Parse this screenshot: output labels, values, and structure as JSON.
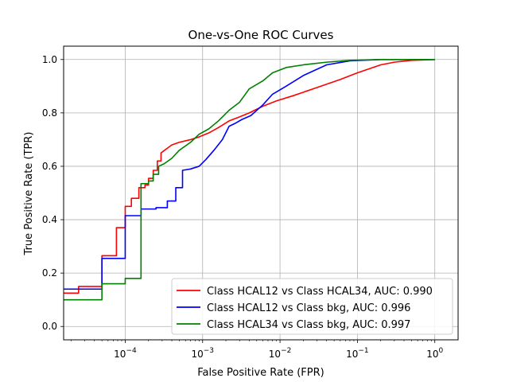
{
  "chart_data": {
    "type": "line",
    "title": "One-vs-One ROC Curves",
    "xlabel": "False Positive Rate (FPR)",
    "ylabel": "True Positive Rate (TPR)",
    "xscale": "log",
    "xlim": [
      1.6e-05,
      2
    ],
    "ylim": [
      -0.05,
      1.05
    ],
    "x_ticks": [
      {
        "value": 0.0001,
        "base": "10",
        "exp": "−4"
      },
      {
        "value": 0.001,
        "base": "10",
        "exp": "−3"
      },
      {
        "value": 0.01,
        "base": "10",
        "exp": "−2"
      },
      {
        "value": 0.1,
        "base": "10",
        "exp": "−1"
      },
      {
        "value": 1,
        "base": "10",
        "exp": "0"
      }
    ],
    "y_ticks": [
      {
        "value": 0.0,
        "label": "0.0"
      },
      {
        "value": 0.2,
        "label": "0.2"
      },
      {
        "value": 0.4,
        "label": "0.4"
      },
      {
        "value": 0.6,
        "label": "0.6"
      },
      {
        "value": 0.8,
        "label": "0.8"
      },
      {
        "value": 1.0,
        "label": "1.0"
      }
    ],
    "grid": true,
    "legend_position": "lower-right",
    "series": [
      {
        "name": "Class HCAL12 vs Class HCAL34, AUC: 0.990",
        "color": "#ff0000",
        "points": [
          [
            1.6e-05,
            0.125
          ],
          [
            2.5e-05,
            0.125
          ],
          [
            2.5e-05,
            0.15
          ],
          [
            5e-05,
            0.15
          ],
          [
            5e-05,
            0.265
          ],
          [
            7.7e-05,
            0.265
          ],
          [
            7.7e-05,
            0.37
          ],
          [
            0.0001,
            0.37
          ],
          [
            0.0001,
            0.45
          ],
          [
            0.00012,
            0.45
          ],
          [
            0.00012,
            0.48
          ],
          [
            0.00015,
            0.48
          ],
          [
            0.00015,
            0.52
          ],
          [
            0.00018,
            0.52
          ],
          [
            0.00018,
            0.53
          ],
          [
            0.0002,
            0.53
          ],
          [
            0.0002,
            0.555
          ],
          [
            0.00023,
            0.555
          ],
          [
            0.00023,
            0.585
          ],
          [
            0.00026,
            0.585
          ],
          [
            0.00026,
            0.62
          ],
          [
            0.00029,
            0.62
          ],
          [
            0.00029,
            0.65
          ],
          [
            0.00034,
            0.665
          ],
          [
            0.0004,
            0.68
          ],
          [
            0.0005,
            0.69
          ],
          [
            0.0007,
            0.7
          ],
          [
            0.0009,
            0.71
          ],
          [
            0.0012,
            0.725
          ],
          [
            0.0016,
            0.745
          ],
          [
            0.0022,
            0.77
          ],
          [
            0.003,
            0.785
          ],
          [
            0.004,
            0.8
          ],
          [
            0.006,
            0.825
          ],
          [
            0.009,
            0.845
          ],
          [
            0.015,
            0.865
          ],
          [
            0.03,
            0.895
          ],
          [
            0.06,
            0.925
          ],
          [
            0.1,
            0.95
          ],
          [
            0.2,
            0.98
          ],
          [
            0.3,
            0.99
          ],
          [
            0.5,
            0.997
          ],
          [
            1,
            1.0
          ]
        ]
      },
      {
        "name": "Class HCAL12 vs Class bkg, AUC: 0.996",
        "color": "#0000ff",
        "points": [
          [
            1.6e-05,
            0.14
          ],
          [
            5e-05,
            0.14
          ],
          [
            5e-05,
            0.255
          ],
          [
            0.0001,
            0.255
          ],
          [
            0.0001,
            0.415
          ],
          [
            0.00016,
            0.415
          ],
          [
            0.00016,
            0.44
          ],
          [
            0.00025,
            0.44
          ],
          [
            0.00025,
            0.445
          ],
          [
            0.00035,
            0.445
          ],
          [
            0.00035,
            0.47
          ],
          [
            0.00045,
            0.47
          ],
          [
            0.00045,
            0.52
          ],
          [
            0.00055,
            0.52
          ],
          [
            0.00055,
            0.585
          ],
          [
            0.0007,
            0.59
          ],
          [
            0.0009,
            0.6
          ],
          [
            0.0011,
            0.625
          ],
          [
            0.0014,
            0.66
          ],
          [
            0.0018,
            0.7
          ],
          [
            0.0022,
            0.75
          ],
          [
            0.0026,
            0.76
          ],
          [
            0.0032,
            0.775
          ],
          [
            0.0042,
            0.79
          ],
          [
            0.006,
            0.83
          ],
          [
            0.008,
            0.87
          ],
          [
            0.012,
            0.9
          ],
          [
            0.02,
            0.94
          ],
          [
            0.04,
            0.98
          ],
          [
            0.08,
            0.995
          ],
          [
            0.2,
            1.0
          ],
          [
            1,
            1.0
          ]
        ]
      },
      {
        "name": "Class HCAL34 vs Class bkg, AUC: 0.997",
        "color": "#008000",
        "points": [
          [
            1.6e-05,
            0.1
          ],
          [
            5e-05,
            0.1
          ],
          [
            5e-05,
            0.16
          ],
          [
            0.0001,
            0.16
          ],
          [
            0.0001,
            0.18
          ],
          [
            0.00016,
            0.18
          ],
          [
            0.00016,
            0.535
          ],
          [
            0.0002,
            0.535
          ],
          [
            0.0002,
            0.545
          ],
          [
            0.00023,
            0.545
          ],
          [
            0.00023,
            0.57
          ],
          [
            0.00027,
            0.57
          ],
          [
            0.00027,
            0.6
          ],
          [
            0.00032,
            0.61
          ],
          [
            0.0004,
            0.63
          ],
          [
            0.0005,
            0.66
          ],
          [
            0.0007,
            0.69
          ],
          [
            0.0009,
            0.72
          ],
          [
            0.0012,
            0.74
          ],
          [
            0.0016,
            0.77
          ],
          [
            0.0022,
            0.81
          ],
          [
            0.003,
            0.84
          ],
          [
            0.004,
            0.89
          ],
          [
            0.006,
            0.92
          ],
          [
            0.008,
            0.95
          ],
          [
            0.012,
            0.97
          ],
          [
            0.02,
            0.98
          ],
          [
            0.04,
            0.99
          ],
          [
            0.08,
            0.997
          ],
          [
            0.2,
            1.0
          ],
          [
            1,
            1.0
          ]
        ]
      }
    ]
  }
}
